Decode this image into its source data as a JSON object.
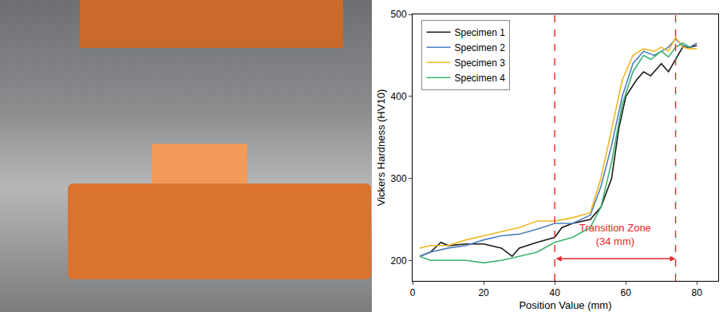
{
  "chart_data": {
    "type": "line",
    "x_label": "Position Value (mm)",
    "y_label": "Vickers Hardness (HV10)",
    "xlim": [
      0,
      86
    ],
    "xticks": [
      0,
      20,
      40,
      60,
      80
    ],
    "ylim": [
      175,
      500
    ],
    "yticks": [
      200,
      300,
      400,
      500
    ],
    "grid": false,
    "legend": "upper left",
    "series": [
      {
        "name": "Specimen 1",
        "color": "#1a1a1a",
        "x": [
          2,
          5,
          8,
          10,
          15,
          20,
          25,
          28,
          30,
          35,
          40,
          42,
          45,
          50,
          53,
          56,
          58,
          60,
          63,
          65,
          67,
          70,
          72,
          74,
          76,
          78,
          80
        ],
        "values": [
          205,
          210,
          222,
          218,
          220,
          220,
          215,
          205,
          215,
          222,
          228,
          240,
          245,
          250,
          265,
          300,
          360,
          400,
          420,
          430,
          425,
          440,
          430,
          445,
          460,
          460,
          462
        ]
      },
      {
        "name": "Specimen 2",
        "color": "#4f7fc0",
        "x": [
          2,
          5,
          10,
          15,
          20,
          25,
          30,
          35,
          40,
          45,
          50,
          53,
          56,
          59,
          62,
          65,
          68,
          70,
          72,
          74,
          76,
          78,
          80
        ],
        "values": [
          205,
          210,
          215,
          218,
          225,
          230,
          232,
          238,
          245,
          245,
          255,
          290,
          340,
          400,
          440,
          455,
          450,
          455,
          460,
          470,
          462,
          460,
          465
        ]
      },
      {
        "name": "Specimen 3",
        "color": "#f0b823",
        "x": [
          2,
          5,
          10,
          15,
          20,
          25,
          30,
          35,
          40,
          45,
          50,
          53,
          56,
          59,
          62,
          65,
          68,
          70,
          72,
          74,
          76,
          78,
          80
        ],
        "values": [
          215,
          218,
          218,
          225,
          230,
          235,
          240,
          248,
          248,
          252,
          258,
          300,
          360,
          420,
          450,
          458,
          455,
          460,
          455,
          472,
          460,
          458,
          458
        ]
      },
      {
        "name": "Specimen 4",
        "color": "#3cb46e",
        "x": [
          2,
          5,
          10,
          15,
          20,
          25,
          30,
          35,
          40,
          45,
          50,
          53,
          56,
          59,
          62,
          65,
          67,
          70,
          72,
          74,
          76,
          78
        ],
        "values": [
          205,
          200,
          200,
          200,
          197,
          200,
          205,
          210,
          222,
          228,
          240,
          265,
          320,
          390,
          430,
          450,
          445,
          455,
          448,
          460,
          465,
          460
        ]
      }
    ],
    "vlines": [
      40,
      74
    ],
    "annotation": {
      "lines": [
        "Transition Zone",
        "(34 mm)"
      ],
      "y": 202,
      "color": "#e8262a"
    }
  }
}
